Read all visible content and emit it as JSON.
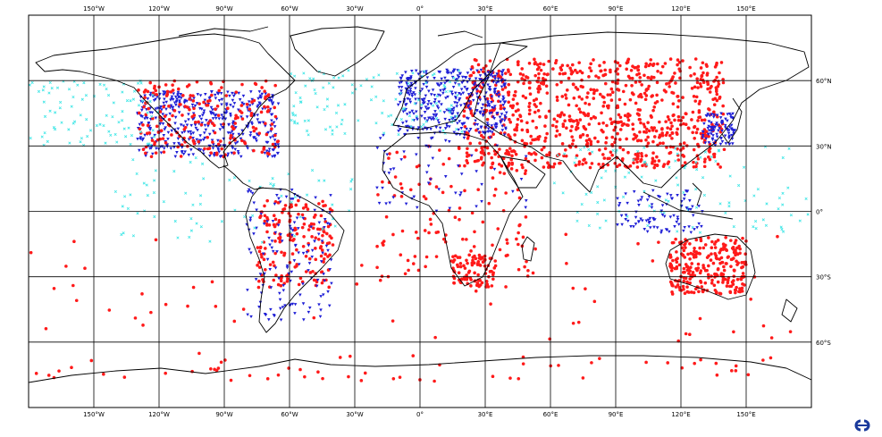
{
  "map": {
    "lon_labels": [
      "150°W",
      "120°W",
      "90°W",
      "60°W",
      "30°W",
      "0°",
      "30°E",
      "60°E",
      "90°E",
      "120°E",
      "150°E"
    ],
    "lat_labels": [
      "60°N",
      "30°N",
      "0°",
      "30°S",
      "60°S"
    ],
    "lon_values": [
      -150,
      -120,
      -90,
      -60,
      -30,
      0,
      30,
      60,
      90,
      120,
      150
    ],
    "lat_values": [
      60,
      30,
      0,
      -30,
      -60
    ],
    "extent": {
      "lon_min": -180,
      "lon_max": 180,
      "lat_min": -90,
      "lat_max": 90
    },
    "series_colors": {
      "red": "#ff1a1a",
      "blue": "#1f1fd6",
      "cyan": "#3ce6e6"
    },
    "logo_icon": "ecmwf-logo-icon"
  }
}
